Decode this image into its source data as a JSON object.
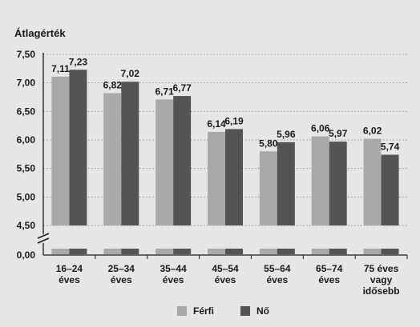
{
  "chart_data": {
    "type": "bar",
    "ylabel": "Átlagérték",
    "categories": [
      [
        "16–24",
        "éves"
      ],
      [
        "25–34",
        "éves"
      ],
      [
        "35–44",
        "éves"
      ],
      [
        "45–54",
        "éves"
      ],
      [
        "55–64",
        "éves"
      ],
      [
        "65–74",
        "éves"
      ],
      [
        "75 éves",
        "vagy",
        "idősebb"
      ]
    ],
    "series": [
      {
        "name": "Férfi",
        "color": "#a9a9a9",
        "values": [
          7.11,
          6.82,
          6.71,
          6.14,
          5.8,
          6.06,
          6.02
        ],
        "labels": [
          "7,11",
          "6,82",
          "6,71",
          "6,14",
          "5,80",
          "6,06",
          "6,02"
        ]
      },
      {
        "name": "Nő",
        "color": "#545454",
        "values": [
          7.23,
          7.02,
          6.77,
          6.19,
          5.96,
          5.97,
          5.74
        ],
        "labels": [
          "7,23",
          "7,02",
          "6,77",
          "6,19",
          "5,96",
          "5,97",
          "5,74"
        ]
      }
    ],
    "ylim": [
      4.5,
      7.5
    ],
    "yticks": [
      {
        "value": 7.5,
        "label": "7,50"
      },
      {
        "value": 7.0,
        "label": "7,00"
      },
      {
        "value": 6.5,
        "label": "6,50"
      },
      {
        "value": 6.0,
        "label": "6,00"
      },
      {
        "value": 5.5,
        "label": "5,50"
      },
      {
        "value": 5.0,
        "label": "5,00"
      },
      {
        "value": 4.5,
        "label": "4,50"
      }
    ],
    "axis_break_tick": {
      "value": 0,
      "label": "0,00"
    },
    "grid": "dotted horizontal",
    "legend_position": "bottom"
  }
}
